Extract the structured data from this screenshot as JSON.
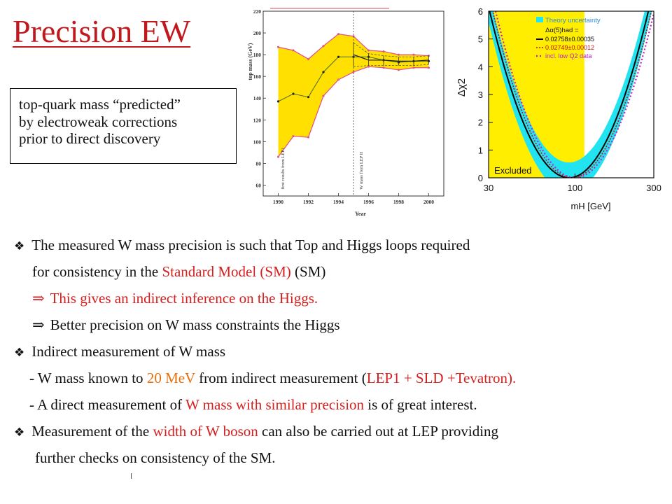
{
  "slide": {
    "title": "Precision EW",
    "note_lines": [
      "top-quark mass “predicted”",
      "by electroweak corrections",
      "prior to direct discovery"
    ]
  },
  "bullets": {
    "b1_text": "The measured W mass precision is such that Top and Higgs loops required",
    "b1_cont_pre": "for consistency in the ",
    "b1_cont_red": "Standard Model (SM)",
    "b1_impl_red": "This gives an indirect inference on the Higgs.",
    "b1_impl2": "Better precision on W mass constraints the Higgs",
    "b2_text": "Indirect measurement of W mass",
    "s1_pre": "- W mass known to ",
    "s1_orange": "20 MeV",
    "s1_mid": " from indirect measurement (",
    "s1_red": "LEP1 + SLD +Tevatron).",
    "s2_pre": "- A direct measurement of ",
    "s2_red": "W mass with similar precision",
    "s2_post": " is of great interest.",
    "b3_pre": "Measurement of the ",
    "b3_red": "width of W boson",
    "b3_post": " can also be carried out at LEP providing",
    "b3_cont": "further checks on consistency of the SM.",
    "symbols": {
      "diamond": "❖",
      "implies": "⇒"
    }
  },
  "chart_data": [
    {
      "type": "area",
      "xlabel": "Year",
      "ylabel": "top mass (GeV)",
      "xlim": [
        1989,
        2001
      ],
      "ylim": [
        50,
        220
      ],
      "xticks": [
        1990,
        1992,
        1994,
        1996,
        1998,
        2000
      ],
      "yticks": [
        60,
        80,
        100,
        120,
        140,
        160,
        180,
        200,
        220
      ],
      "annotations": [
        "first results from LEP1",
        "W mass from LEP II"
      ],
      "colors": {
        "band": "#ffe000",
        "band_edge": "#e0508c",
        "central": "#222222",
        "direct": "#222222"
      },
      "series": [
        {
          "x": [
            1990,
            1991,
            1992,
            1993,
            1994,
            1995,
            1996,
            1997,
            1998,
            1999,
            2000
          ],
          "upper": [
            187,
            184,
            176,
            188,
            199,
            197,
            184,
            183,
            180,
            180,
            179
          ],
          "central": [
            137,
            144,
            141,
            164,
            178,
            178,
            178,
            175,
            173,
            174,
            174
          ],
          "lower": [
            86,
            105,
            104,
            142,
            157,
            164,
            169,
            168,
            166,
            168,
            168
          ]
        },
        {
          "x": [
            1995,
            1996,
            1997,
            1998,
            1999,
            2000
          ],
          "values": [
            180,
            175,
            175,
            174,
            174,
            175
          ],
          "lower": [
            169,
            170,
            170,
            170,
            170,
            171
          ],
          "upper": [
            191,
            181,
            179,
            178,
            178,
            179
          ]
        }
      ]
    },
    {
      "type": "line",
      "xlabel": "mH [GeV]",
      "ylabel": "Δχ2",
      "xscale": "log",
      "xlim": [
        30,
        300
      ],
      "ylim": [
        0,
        6
      ],
      "xticks": [
        30,
        100,
        300
      ],
      "yticks": [
        0,
        1,
        2,
        3,
        4,
        5,
        6
      ],
      "excluded_region": [
        30,
        114
      ],
      "excluded_label": "Excluded",
      "legend": {
        "placement": "top-right",
        "band": "Theory uncertainty",
        "header": "Δα(5)had =",
        "entries": [
          "0.02758±0.00035",
          "0.02749±0.00012",
          "incl. low Q2 data"
        ]
      },
      "colors": {
        "excluded": "#ffee00",
        "band": "#22e4f0",
        "solid": "#000000",
        "dotted": "#c0101a",
        "dashed_magenta": "#c020c8"
      },
      "series": [
        {
          "name": "0.02758±0.00035",
          "min_x": 92,
          "x": [
            30,
            45,
            60,
            76,
            92,
            120,
            160,
            200,
            240,
            290
          ],
          "values": [
            6.2,
            3.4,
            1.8,
            0.6,
            0.0,
            0.5,
            2.0,
            3.6,
            5.0,
            6.3
          ]
        },
        {
          "name": "0.02749±0.00012",
          "min_x": 96,
          "x": [
            30,
            45,
            60,
            78,
            96,
            124,
            160,
            200,
            240,
            290
          ],
          "values": [
            6.5,
            3.7,
            2.0,
            0.7,
            0.0,
            0.5,
            1.8,
            3.3,
            4.6,
            6.1
          ]
        },
        {
          "name": "incl. low Q2 data",
          "min_x": 100,
          "x": [
            30,
            45,
            60,
            80,
            100,
            130,
            170,
            210,
            250,
            300
          ],
          "values": [
            6.4,
            3.8,
            2.2,
            0.8,
            0.0,
            0.5,
            1.8,
            3.2,
            4.5,
            5.9
          ]
        }
      ]
    }
  ]
}
